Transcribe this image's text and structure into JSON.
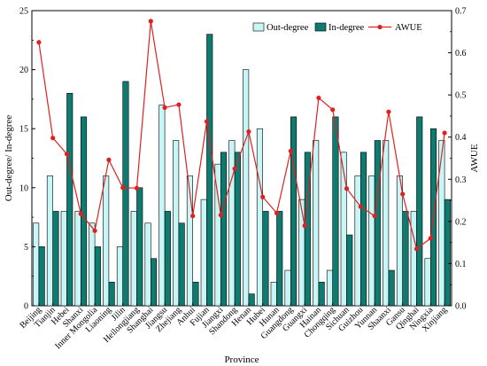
{
  "chart_data": {
    "type": "bar",
    "xlabel": "Province",
    "ylabel": "Out-degree/ In-degree",
    "ylabel_right": "AWUE",
    "ylim": [
      0,
      25
    ],
    "ylim_right": [
      0,
      0.7
    ],
    "yticks": [
      0,
      5,
      10,
      15,
      20,
      25
    ],
    "yticks_right": [
      0.0,
      0.1,
      0.2,
      0.3,
      0.4,
      0.5,
      0.6,
      0.7
    ],
    "legend_position": "top-right",
    "categories": [
      "Beijing",
      "Tianjin",
      "Hebei",
      "Shanxi",
      "Inner Mongolia",
      "Liaoning",
      "Jilin",
      "Heilongjiang",
      "Shanghai",
      "Jiangsu",
      "Zhejiang",
      "Anhui",
      "Fujian",
      "Jiangxi",
      "Shandong",
      "Henan",
      "Hubei",
      "Hunan",
      "Guangdong",
      "Guangxi",
      "Hainan",
      "Chongqing",
      "Sichuan",
      "Guizhou",
      "Yunnan",
      "Shaanxi",
      "Gansu",
      "Qinghai",
      "Ningxia",
      "Xinjiang"
    ],
    "series": [
      {
        "name": "Out-degree",
        "type": "bar",
        "color": "#c8f5f5",
        "values": [
          7,
          11,
          8,
          8,
          7,
          11,
          5,
          8,
          7,
          17,
          14,
          11,
          9,
          12,
          14,
          20,
          15,
          2,
          3,
          9,
          14,
          3,
          13,
          11,
          11,
          14,
          11,
          8,
          4,
          14
        ]
      },
      {
        "name": "In-degree",
        "type": "bar",
        "color": "#0f7a70",
        "values": [
          5,
          8,
          18,
          16,
          5,
          2,
          19,
          10,
          4,
          8,
          7,
          2,
          23,
          13,
          13,
          1,
          8,
          8,
          16,
          13,
          2,
          16,
          6,
          13,
          14,
          3,
          8,
          16,
          15,
          9
        ]
      },
      {
        "name": "AWUE",
        "type": "line",
        "axis": "right",
        "color": "#e02020",
        "values": [
          0.625,
          0.398,
          0.36,
          0.218,
          0.178,
          0.346,
          0.28,
          0.279,
          0.675,
          0.47,
          0.477,
          0.213,
          0.437,
          0.215,
          0.325,
          0.413,
          0.258,
          0.22,
          0.367,
          0.19,
          0.493,
          0.465,
          0.278,
          0.235,
          0.213,
          0.46,
          0.265,
          0.135,
          0.16,
          0.41
        ]
      }
    ]
  }
}
